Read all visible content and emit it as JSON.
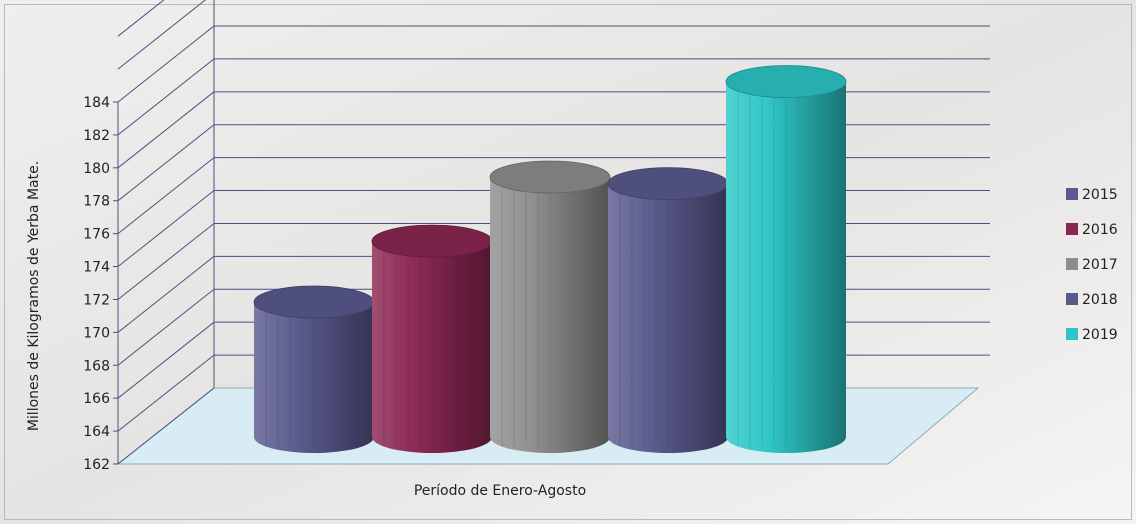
{
  "chart_data": {
    "type": "bar",
    "title": "",
    "xlabel": "Período de Enero-Agosto",
    "ylabel": "Millones de Kilogramos de Yerba Mate.",
    "ylim": [
      162,
      184
    ],
    "yticks": [
      "162",
      "164",
      "166",
      "168",
      "170",
      "172",
      "174",
      "176",
      "178",
      "180",
      "182",
      "184"
    ],
    "grid": true,
    "legend_position": "right",
    "categories": [
      ""
    ],
    "series": [
      {
        "name": "2015",
        "values": [
          170.2
        ],
        "color": "#5a5a8e"
      },
      {
        "name": "2016",
        "values": [
          173.9
        ],
        "color": "#8b2752"
      },
      {
        "name": "2017",
        "values": [
          177.8
        ],
        "color": "#8e8e8e"
      },
      {
        "name": "2018",
        "values": [
          177.4
        ],
        "color": "#5a5a8e"
      },
      {
        "name": "2019",
        "values": [
          183.6
        ],
        "color": "#2cc6c6"
      }
    ]
  }
}
